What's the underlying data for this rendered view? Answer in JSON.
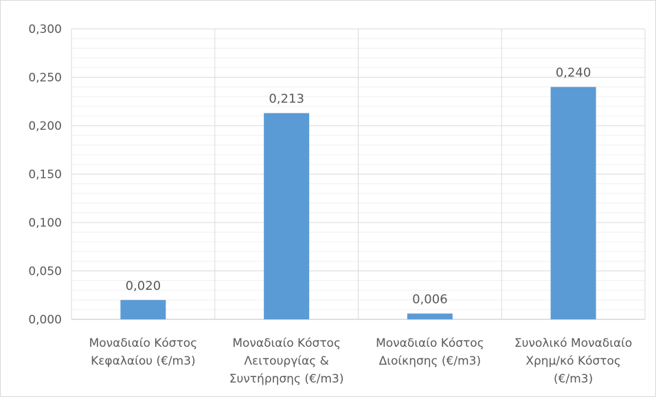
{
  "chart_data": {
    "type": "bar",
    "title": "",
    "xlabel": "",
    "ylabel": "",
    "ylim": [
      0,
      0.3
    ],
    "yticks": [
      "0,000",
      "0,050",
      "0,100",
      "0,150",
      "0,200",
      "0,250",
      "0,300"
    ],
    "categories": [
      [
        "Μοναδιαίο Κόστος",
        "Κεφαλαίου (€/m3)"
      ],
      [
        "Μοναδιαίο Κόστος",
        "Λειτουργίας &",
        "Συντήρησης (€/m3)"
      ],
      [
        "Μοναδιαίο Κόστος",
        "Διοίκησης (€/m3)"
      ],
      [
        "Συνολικό Μοναδιαίο",
        "Χρημ/κό Κόστος",
        "(€/m3)"
      ]
    ],
    "values": [
      0.02,
      0.213,
      0.006,
      0.24
    ],
    "data_labels": [
      "0,020",
      "0,213",
      "0,006",
      "0,240"
    ],
    "bar_color": "#5b9bd5",
    "grid": true,
    "legend": "none"
  }
}
